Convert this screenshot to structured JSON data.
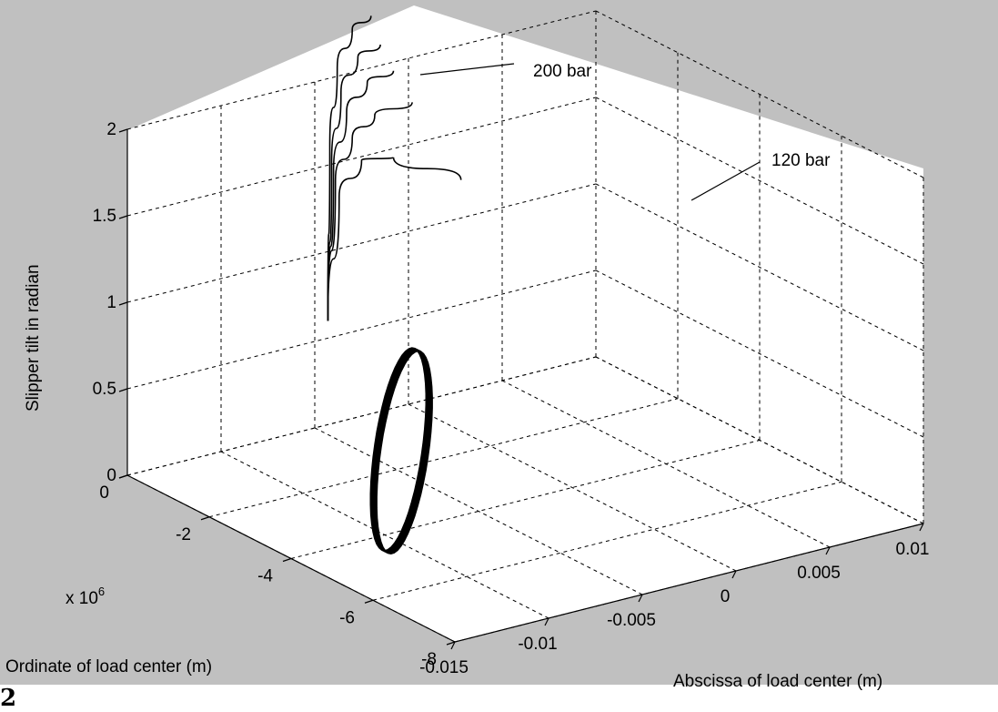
{
  "figure_number": "2",
  "chart_data": {
    "type": "line3d",
    "background_color": "#c0c0c0",
    "axes_color": "#ffffff",
    "line_color": "#000000",
    "grid": true,
    "xlabel": "Abscissa of load center (m)",
    "ylabel": "Ordinate of load center (m)",
    "zlabel": "Slipper tilt in radian",
    "xlim": [
      -0.015,
      0.01
    ],
    "ylim": [
      -8,
      0
    ],
    "zlim": [
      0,
      2
    ],
    "x_ticks": [
      -0.015,
      -0.01,
      -0.005,
      0,
      0.005,
      0.01
    ],
    "x_tick_labels": [
      "-0.015",
      "-0.01",
      "-0.005",
      "0",
      "0.005",
      "0.01"
    ],
    "y_ticks": [
      0,
      -2,
      -4,
      -6,
      -8
    ],
    "y_tick_labels": [
      "0",
      "-2",
      "-4",
      "-6",
      "-8"
    ],
    "y_multiplier": "x 10",
    "y_multiplier_exp": "6",
    "z_ticks": [
      0,
      0.5,
      1,
      1.5,
      2
    ],
    "z_tick_labels": [
      "0",
      "0.5",
      "1",
      "1.5",
      "2"
    ],
    "annotations": [
      "200 bar",
      "120 bar"
    ],
    "orbit": {
      "description_values": "slipper load-center orbit, x from -0.015 to 0.0 m, y -6 to 0 (x10^6 m), tilt ~0.3 rad",
      "x_range": [
        -0.0148,
        0.0005
      ],
      "y_range": [
        -6.2,
        0
      ],
      "z": 0.3
    },
    "series": [
      {
        "name": "200 bar",
        "x": [
          -0.0043,
          -0.0042,
          -0.0038,
          -0.003,
          -0.002
        ],
        "y": [
          0,
          0,
          0,
          0,
          0
        ],
        "z": [
          0.6,
          1.6,
          2.05,
          2.25,
          2.3
        ]
      },
      {
        "name": "",
        "x": [
          -0.0043,
          -0.0041,
          -0.0036,
          -0.0027,
          -0.0015
        ],
        "y": [
          0,
          0,
          0,
          0,
          0
        ],
        "z": [
          0.6,
          1.5,
          1.9,
          2.08,
          2.12
        ]
      },
      {
        "name": "",
        "x": [
          -0.0043,
          -0.004,
          -0.0033,
          -0.0022,
          -0.0008
        ],
        "y": [
          0,
          0,
          0,
          0,
          0
        ],
        "z": [
          0.6,
          1.45,
          1.78,
          1.92,
          1.95
        ]
      },
      {
        "name": "",
        "x": [
          -0.0043,
          -0.0039,
          -0.003,
          -0.0018,
          0.0002
        ],
        "y": [
          0,
          0,
          0,
          0,
          0
        ],
        "z": [
          0.6,
          1.4,
          1.62,
          1.72,
          1.74
        ]
      },
      {
        "name": "120 bar",
        "x": [
          -0.0043,
          -0.0037,
          -0.0025,
          -0.0008,
          0.0028
        ],
        "y": [
          0,
          0,
          0,
          0,
          0
        ],
        "z": [
          0.6,
          1.3,
          1.48,
          1.45,
          1.22
        ]
      }
    ]
  }
}
